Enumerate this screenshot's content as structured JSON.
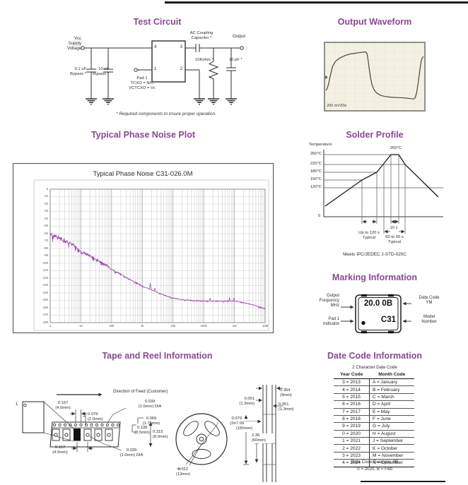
{
  "colors": {
    "heading": "#8b4796",
    "phase_trace": "#9c3fae",
    "ink": "#2d2d2d",
    "waveform_bg": "#f5f1e2",
    "waveform_trace": "#4f4d36"
  },
  "headings": {
    "test_circuit": "Test Circuit",
    "output_waveform": "Output Waveform",
    "phase_noise": "Typical Phase Noise Plot",
    "solder_profile": "Solder Profile",
    "marking": "Marking Information",
    "tape_reel": "Tape and Reel Information",
    "date_code": "Date Code Information"
  },
  "test_circuit": {
    "vcc": "Vcc\nSupply\nVoltage",
    "cap1": "0.1 uF\nBypass *",
    "cap2": "10 nF\nBypass *",
    "pad1": "Pad 1\nTCXO = N/C\nVCTCXO = Vc",
    "ac_cap": "AC Coupling\nCapacitor *",
    "resistor": "10Kohm *",
    "output": "Output",
    "cap3": "10 pF *",
    "pin4": "4",
    "pin3": "3",
    "pin1": "1",
    "pin2": "2",
    "note": "* Required components to insure proper operation."
  },
  "waveform": {
    "scale_label": "200 mV/Div"
  },
  "solder": {
    "temperature_label": "Temperature",
    "y_labels": [
      "260°C",
      "220°C",
      "180°C",
      "150°C",
      "120°C"
    ],
    "zero_label": "0",
    "peak_label": "260°C",
    "time1": "Up to 120 s\nTypical",
    "time2": "10 s",
    "time3": "60 to 90 s\nTypical",
    "footer": "Meets IPC/JEDEC J-STD-020C"
  },
  "marking": {
    "freq_label": "Output\nFrequency\nMHz",
    "pad1_label": "Pad 1\nIndicator",
    "datecode_label": "Date Code\nYM",
    "model_label": "Model\nNumber",
    "chip_top": "20.0 0B",
    "chip_model": "C31"
  },
  "tape": {
    "feed_label": "Direction of Feed (Customer)",
    "pocket_num": "1",
    "dim_top_pitch": "0.157\n(4.0mm)",
    "dim_hole_offset": "0.079\n(2.0mm)",
    "dim_hole_dia": "0.039\n(1.0mm) DIA",
    "dim_hole_edge": "0.069\n(1.75mm)",
    "dim_pocket_center": "0.138\n(3.5mm)",
    "dim_tape_width": "0.315\n(8.0mm)",
    "dim_bottom_pitch": "0.157\n(4.0mm)",
    "dim_pocket_hole_dia": "0.039\n(1.0mm) DIA",
    "dim_hub": "0.512\n(13mm)",
    "dim_side_width": "0.354\n(9mm)",
    "dim_side_left": "0.051\n(1.3mm)",
    "dim_side_right": "0.051\n(1.3mm)",
    "dim_side_gap": "0.079\n(2mm)",
    "dim_reel_dia": "7.09\n(180mm)",
    "dim_hub_dia": "2.36\n(60mm)"
  },
  "date_code": {
    "subtitle": "2 Character Date Code",
    "col1": "Year Code",
    "col2": "Month Code",
    "rows": [
      [
        "3 = 2013",
        "A = January"
      ],
      [
        "4 = 2014",
        "B = February"
      ],
      [
        "5 = 2015",
        "C = March"
      ],
      [
        "6 = 2016",
        "D = April"
      ],
      [
        "7 = 2017",
        "E = May"
      ],
      [
        "8 = 2018",
        "F = June"
      ],
      [
        "9 = 2019",
        "G = July"
      ],
      [
        "0 = 2020",
        "H = August"
      ],
      [
        "1 = 2021",
        "J = September"
      ],
      [
        "2 = 2022",
        "K = October"
      ],
      [
        "3 = 2023",
        "M = November"
      ],
      [
        "4 = 2024",
        "N = December"
      ]
    ],
    "example1": "Date Code Example:  0B",
    "example2": "0 = 2020, B = Feb"
  },
  "chart_data": [
    {
      "type": "line",
      "title": "Typical Phase Noise C31-026.0M",
      "x_scale": "log",
      "xlim": [
        1,
        10000000
      ],
      "ylim": [
        -180,
        0
      ],
      "y_tick_step": 10,
      "x_tick_labels": [
        "1",
        "10",
        "100",
        "1k",
        "10k",
        "100k",
        "1M",
        "10M"
      ],
      "x": [
        1,
        2,
        4,
        7,
        10,
        20,
        40,
        70,
        100,
        200,
        400,
        700,
        1000,
        2000,
        4000,
        7000,
        10000,
        20000,
        40000,
        100000,
        200000,
        400000,
        1000000,
        2000000,
        4000000,
        7000000,
        10000000
      ],
      "y": [
        -60,
        -66,
        -72,
        -78,
        -85,
        -90,
        -97,
        -103,
        -108,
        -115,
        -122,
        -127,
        -131,
        -136,
        -141,
        -145,
        -147,
        -149,
        -150,
        -151,
        -151,
        -151,
        -151,
        -153,
        -156,
        -159,
        -161
      ],
      "spikes": [
        {
          "x": 1800,
          "dy": 9
        },
        {
          "x": 2600,
          "dy": 5
        },
        {
          "x": 160000,
          "dy": 4
        },
        {
          "x": 700000,
          "dy": 5
        },
        {
          "x": 950000,
          "dy": 4
        }
      ],
      "color": "#9c3fae"
    },
    {
      "type": "line",
      "title": "Solder Profile",
      "ylabel": "Temperature",
      "y_ticks_c": [
        0,
        120,
        150,
        180,
        220,
        260
      ],
      "peak_c": 260,
      "annotations": [
        "Up to 120 s Typical",
        "10 s",
        "60 to 90 s Typical"
      ],
      "note": "Meets IPC/JEDEC J-STD-020C"
    }
  ]
}
